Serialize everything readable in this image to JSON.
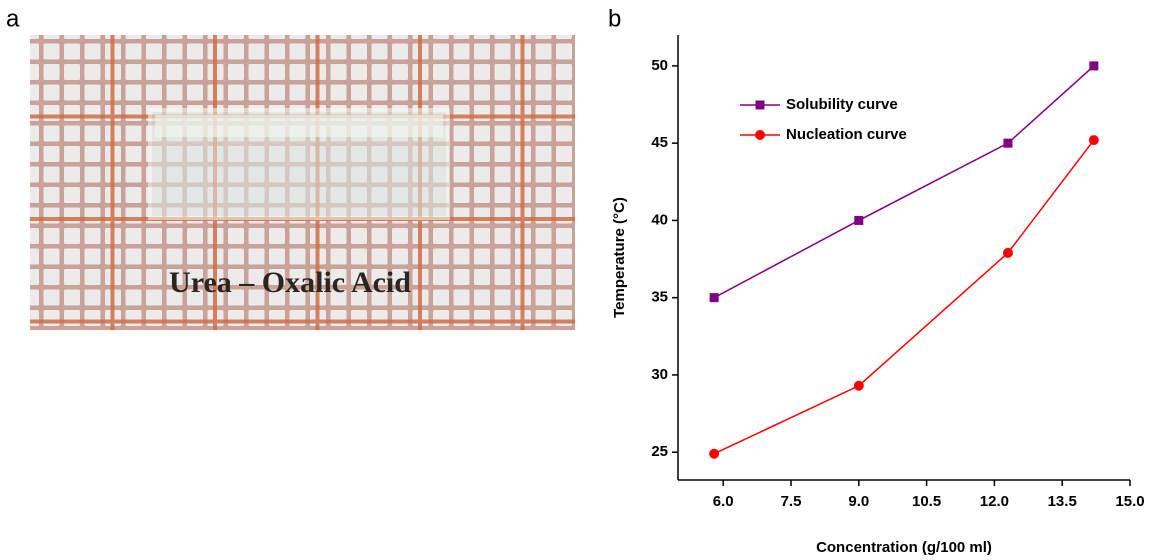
{
  "panel_labels": [
    "a",
    "b"
  ],
  "photo": {
    "caption": "Urea – Oxalic Acid"
  },
  "chart_data": {
    "type": "line",
    "xlabel": "Concentration (g/100 ml)",
    "ylabel": "Temperature (°C)",
    "x": [
      5.8,
      9.0,
      12.3,
      14.2
    ],
    "series": [
      {
        "name": "Solubility curve",
        "color": "#800080",
        "marker": "square",
        "values": [
          35,
          40,
          45,
          50
        ]
      },
      {
        "name": "Nucleation curve",
        "color": "#ff0000",
        "marker": "circle",
        "values": [
          24.9,
          29.3,
          37.9,
          45.2
        ]
      }
    ],
    "xlim": [
      5,
      15
    ],
    "xticks": [
      {
        "value": 6,
        "label": "6.0"
      },
      7.5,
      {
        "value": 9,
        "label": "9.0"
      },
      10.5,
      {
        "value": 12,
        "label": "12.0"
      },
      13.5,
      {
        "value": 15,
        "label": "15.0"
      }
    ],
    "ylim": [
      23.2,
      52
    ],
    "yticks": [
      25,
      30,
      35,
      40,
      45,
      50
    ],
    "legend": "upper left"
  }
}
